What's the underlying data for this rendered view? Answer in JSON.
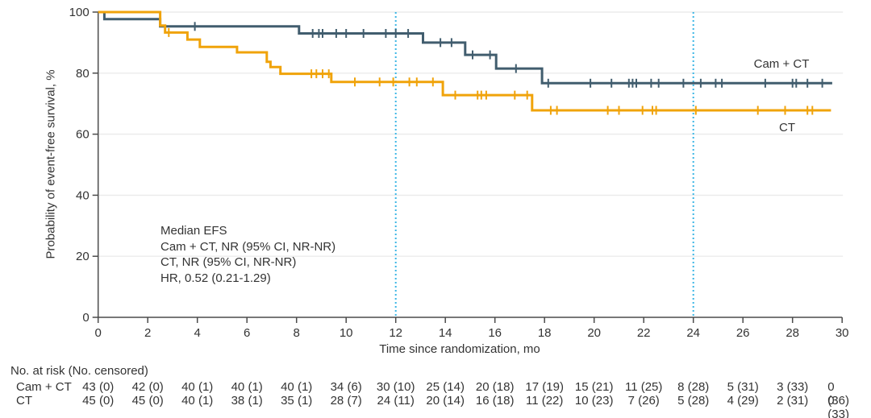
{
  "chart_data": {
    "type": "line",
    "subtype": "kaplan-meier-step-curve",
    "title": "",
    "xlabel": "Time since randomization, mo",
    "ylabel": "Probability of event-free survival, %",
    "xlim": [
      0,
      30
    ],
    "ylim": [
      0,
      100
    ],
    "xticks": [
      0,
      2,
      4,
      6,
      8,
      10,
      12,
      14,
      16,
      18,
      20,
      22,
      24,
      26,
      28,
      30
    ],
    "yticks": [
      0,
      20,
      40,
      60,
      80,
      100
    ],
    "grid": "horizontal gridlines at y ticks, light gray",
    "legend_position": "labels at right end of curves",
    "reference_lines_x": [
      12,
      24
    ],
    "reference_line_color": "#3cb6e5",
    "axis_color": "#4b4b4b",
    "grid_color": "#ebebeb",
    "series": [
      {
        "name": "Cam + CT",
        "color": "#415d6e",
        "steps": [
          [
            0,
            100
          ],
          [
            0.25,
            97.7
          ],
          [
            2.5,
            95.3
          ],
          [
            8.1,
            93.0
          ],
          [
            13.1,
            90.0
          ],
          [
            14.8,
            86.0
          ],
          [
            16.05,
            81.5
          ],
          [
            17.9,
            76.7
          ]
        ],
        "end_x": 29.6,
        "censor_x": [
          3.9,
          8.65,
          8.9,
          9.05,
          9.6,
          10.0,
          10.7,
          11.6,
          12.0,
          12.5,
          13.8,
          14.25,
          15.1,
          15.8,
          16.85,
          18.15,
          19.85,
          20.7,
          21.4,
          21.55,
          21.7,
          22.3,
          22.6,
          23.6,
          24.3,
          24.9,
          25.15,
          26.9,
          28.0,
          28.15,
          28.6,
          29.2
        ]
      },
      {
        "name": "CT",
        "color": "#f0a30a",
        "steps": [
          [
            0,
            100
          ],
          [
            2.5,
            95.6
          ],
          [
            2.7,
            93.3
          ],
          [
            3.6,
            91.0
          ],
          [
            4.1,
            88.6
          ],
          [
            5.6,
            86.8
          ],
          [
            6.8,
            83.7
          ],
          [
            6.95,
            82.0
          ],
          [
            7.35,
            79.8
          ],
          [
            9.4,
            77.1
          ],
          [
            13.9,
            72.8
          ],
          [
            17.5,
            67.8
          ]
        ],
        "end_x": 29.55,
        "censor_x": [
          2.85,
          8.6,
          8.8,
          9.05,
          9.3,
          10.35,
          11.35,
          11.9,
          12.55,
          12.85,
          13.5,
          14.4,
          15.3,
          15.45,
          15.65,
          16.8,
          17.3,
          18.25,
          18.5,
          20.55,
          21.0,
          21.95,
          22.35,
          22.5,
          24.1,
          26.6,
          27.7,
          28.6,
          28.8
        ]
      }
    ],
    "annotation_lines": [
      "Median EFS",
      "Cam + CT, NR (95% CI, NR-NR)",
      "CT, NR (95% CI, NR-NR)",
      "HR, 0.52 (0.21-1.29)"
    ],
    "risk_table": {
      "header": "No. at risk (No. censored)",
      "time_points": [
        0,
        2,
        4,
        6,
        8,
        10,
        12,
        14,
        16,
        18,
        20,
        22,
        24,
        26,
        28,
        30
      ],
      "rows": [
        {
          "label": "Cam + CT",
          "values": [
            "43 (0)",
            "42 (0)",
            "40 (1)",
            "40 (1)",
            "40 (1)",
            "34 (6)",
            "30 (10)",
            "25 (14)",
            "20 (18)",
            "17 (19)",
            "15 (21)",
            "11 (25)",
            "8 (28)",
            "5 (31)",
            "3 (33)",
            "0 (36)"
          ]
        },
        {
          "label": "CT",
          "values": [
            "45 (0)",
            "45 (0)",
            "40 (1)",
            "38 (1)",
            "35 (1)",
            "28 (7)",
            "24 (11)",
            "20 (14)",
            "16 (18)",
            "11 (22)",
            "10 (23)",
            "7 (26)",
            "5 (28)",
            "4 (29)",
            "2 (31)",
            "0 (33)"
          ]
        }
      ]
    }
  }
}
